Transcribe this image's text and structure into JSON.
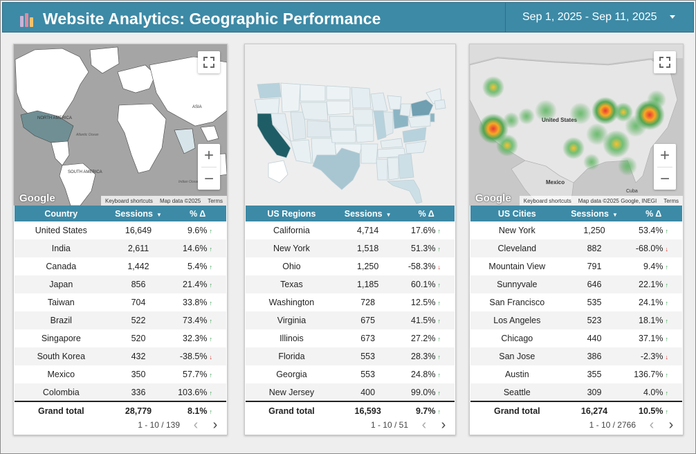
{
  "header": {
    "title": "Website Analytics: Geographic Performance",
    "date_range": "Sep 1, 2025 - Sep 11, 2025",
    "logo_icon": "bar-chart-icon",
    "bg_color": "#3d8aa6"
  },
  "cards": {
    "country": {
      "map": {
        "google_logo": "Google",
        "keyboard": "Keyboard shortcuts",
        "map_data": "Map data ©2025",
        "terms": "Terms",
        "labels": [
          "NORTH AMERICA",
          "Atlantic Ocean",
          "SOUTH AMERICA",
          "ASIA",
          "Indian Ocean"
        ],
        "zoom_in": "+",
        "zoom_out": "−"
      },
      "headers": [
        "Country",
        "Sessions",
        "% Δ"
      ],
      "rows": [
        {
          "name": "United States",
          "sessions": "16,649",
          "pct": "9.6%",
          "dir": "up"
        },
        {
          "name": "India",
          "sessions": "2,611",
          "pct": "14.6%",
          "dir": "up"
        },
        {
          "name": "Canada",
          "sessions": "1,442",
          "pct": "5.4%",
          "dir": "up"
        },
        {
          "name": "Japan",
          "sessions": "856",
          "pct": "21.4%",
          "dir": "up"
        },
        {
          "name": "Taiwan",
          "sessions": "704",
          "pct": "33.8%",
          "dir": "up"
        },
        {
          "name": "Brazil",
          "sessions": "522",
          "pct": "73.4%",
          "dir": "up"
        },
        {
          "name": "Singapore",
          "sessions": "520",
          "pct": "32.3%",
          "dir": "up"
        },
        {
          "name": "South Korea",
          "sessions": "432",
          "pct": "-38.5%",
          "dir": "down"
        },
        {
          "name": "Mexico",
          "sessions": "350",
          "pct": "57.7%",
          "dir": "up"
        },
        {
          "name": "Colombia",
          "sessions": "336",
          "pct": "103.6%",
          "dir": "up"
        }
      ],
      "total": {
        "name": "Grand total",
        "sessions": "28,779",
        "pct": "8.1%",
        "dir": "up"
      },
      "pager": "1 - 10 / 139"
    },
    "regions": {
      "headers": [
        "US Regions",
        "Sessions",
        "% Δ"
      ],
      "rows": [
        {
          "name": "California",
          "sessions": "4,714",
          "pct": "17.6%",
          "dir": "up"
        },
        {
          "name": "New York",
          "sessions": "1,518",
          "pct": "51.3%",
          "dir": "up"
        },
        {
          "name": "Ohio",
          "sessions": "1,250",
          "pct": "-58.3%",
          "dir": "down"
        },
        {
          "name": "Texas",
          "sessions": "1,185",
          "pct": "60.1%",
          "dir": "up"
        },
        {
          "name": "Washington",
          "sessions": "728",
          "pct": "12.5%",
          "dir": "up"
        },
        {
          "name": "Virginia",
          "sessions": "675",
          "pct": "41.5%",
          "dir": "up"
        },
        {
          "name": "Illinois",
          "sessions": "673",
          "pct": "27.2%",
          "dir": "up"
        },
        {
          "name": "Florida",
          "sessions": "553",
          "pct": "28.3%",
          "dir": "up"
        },
        {
          "name": "Georgia",
          "sessions": "553",
          "pct": "24.8%",
          "dir": "up"
        },
        {
          "name": "New Jersey",
          "sessions": "400",
          "pct": "99.0%",
          "dir": "up"
        }
      ],
      "total": {
        "name": "Grand total",
        "sessions": "16,593",
        "pct": "9.7%",
        "dir": "up"
      },
      "pager": "1 - 10 / 51"
    },
    "cities": {
      "map": {
        "google_logo": "Google",
        "keyboard": "Keyboard shortcuts",
        "map_data": "Map data ©2025 Google, INEGI",
        "terms": "Terms",
        "country_label": "United States",
        "mexico_label": "Mexico",
        "cuba_label": "Cuba",
        "zoom_in": "+",
        "zoom_out": "−"
      },
      "headers": [
        "US Cities",
        "Sessions",
        "% Δ"
      ],
      "rows": [
        {
          "name": "New York",
          "sessions": "1,250",
          "pct": "53.4%",
          "dir": "up"
        },
        {
          "name": "Cleveland",
          "sessions": "882",
          "pct": "-68.0%",
          "dir": "down"
        },
        {
          "name": "Mountain View",
          "sessions": "791",
          "pct": "9.4%",
          "dir": "up"
        },
        {
          "name": "Sunnyvale",
          "sessions": "646",
          "pct": "22.1%",
          "dir": "up"
        },
        {
          "name": "San Francisco",
          "sessions": "535",
          "pct": "24.1%",
          "dir": "up"
        },
        {
          "name": "Los Angeles",
          "sessions": "523",
          "pct": "18.1%",
          "dir": "up"
        },
        {
          "name": "Chicago",
          "sessions": "440",
          "pct": "37.1%",
          "dir": "up"
        },
        {
          "name": "San Jose",
          "sessions": "386",
          "pct": "-2.3%",
          "dir": "down"
        },
        {
          "name": "Austin",
          "sessions": "355",
          "pct": "136.7%",
          "dir": "up"
        },
        {
          "name": "Seattle",
          "sessions": "309",
          "pct": "4.0%",
          "dir": "up"
        }
      ],
      "total": {
        "name": "Grand total",
        "sessions": "16,274",
        "pct": "10.5%",
        "dir": "up"
      },
      "pager": "1 - 10 / 2766"
    }
  },
  "colors": {
    "up": "#2e9d48",
    "down": "#d93025",
    "accent": "#3d8aa6"
  },
  "icons": {
    "up": "arrow-up-icon",
    "down": "arrow-down-icon",
    "fullscreen": "fullscreen-icon",
    "prev": "chevron-left-icon",
    "next": "chevron-right-icon",
    "sort": "sort-desc-icon"
  }
}
